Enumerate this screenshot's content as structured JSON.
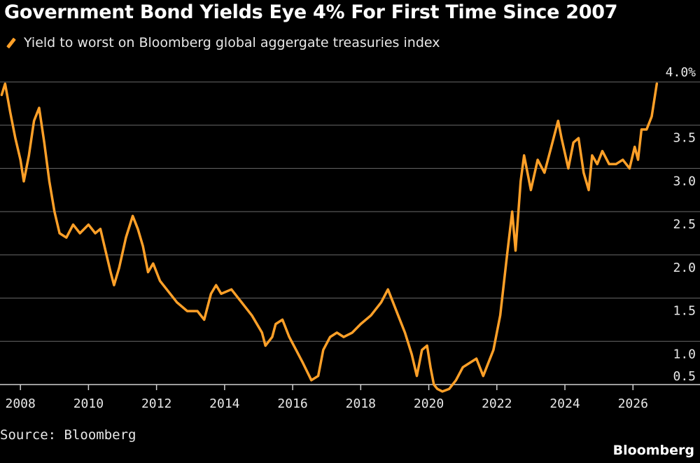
{
  "header": {
    "title": "Government Bond Yields Eye 4% For First Time Since 2007"
  },
  "footer": {
    "source": "Source: Bloomberg",
    "brand": "Bloomberg"
  },
  "chart_data": {
    "type": "line",
    "title": "Government Bond Yields Eye 4% For First Time Since 2007",
    "xlabel": "",
    "ylabel": "",
    "xlim": [
      2007.4,
      2026.9
    ],
    "ylim": [
      0.4,
      4.0
    ],
    "x_ticks": [
      {
        "value": 2008,
        "label": "2008"
      },
      {
        "value": 2010,
        "label": "2010"
      },
      {
        "value": 2012,
        "label": "2012"
      },
      {
        "value": 2014,
        "label": "2014"
      },
      {
        "value": 2016,
        "label": "2016"
      },
      {
        "value": 2018,
        "label": "2018"
      },
      {
        "value": 2020,
        "label": "2020"
      },
      {
        "value": 2022,
        "label": "2022"
      },
      {
        "value": 2024,
        "label": "2024"
      },
      {
        "value": 2026,
        "label": "2026"
      }
    ],
    "y_ticks": [
      {
        "value": 4.0,
        "label": "4.0%"
      },
      {
        "value": 3.5,
        "label": "3.5"
      },
      {
        "value": 3.0,
        "label": "3.0"
      },
      {
        "value": 2.5,
        "label": "2.5"
      },
      {
        "value": 2.0,
        "label": "2.0"
      },
      {
        "value": 1.5,
        "label": "1.5"
      },
      {
        "value": 1.0,
        "label": "1.0"
      },
      {
        "value": 0.5,
        "label": "0.5"
      }
    ],
    "grid": "horizontal",
    "legend": "top-left",
    "series": [
      {
        "name": "Yield to worst on Bloomberg global aggergate treasuries index",
        "color": "#FFA028",
        "x": [
          2007.45,
          2007.55,
          2007.7,
          2007.85,
          2008.0,
          2008.1,
          2008.25,
          2008.4,
          2008.55,
          2008.7,
          2008.85,
          2009.0,
          2009.15,
          2009.35,
          2009.55,
          2009.75,
          2010.0,
          2010.2,
          2010.35,
          2010.5,
          2010.65,
          2010.75,
          2010.9,
          2011.1,
          2011.3,
          2011.45,
          2011.6,
          2011.75,
          2011.9,
          2012.1,
          2012.3,
          2012.6,
          2012.9,
          2013.2,
          2013.4,
          2013.6,
          2013.75,
          2013.9,
          2014.2,
          2014.5,
          2014.8,
          2015.1,
          2015.2,
          2015.4,
          2015.5,
          2015.7,
          2015.9,
          2016.1,
          2016.3,
          2016.55,
          2016.75,
          2016.9,
          2017.1,
          2017.3,
          2017.5,
          2017.75,
          2018.0,
          2018.3,
          2018.6,
          2018.8,
          2018.95,
          2019.1,
          2019.3,
          2019.5,
          2019.65,
          2019.8,
          2019.95,
          2020.05,
          2020.15,
          2020.25,
          2020.4,
          2020.6,
          2020.8,
          2021.0,
          2021.2,
          2021.4,
          2021.6,
          2021.75,
          2021.9,
          2022.1,
          2022.3,
          2022.45,
          2022.55,
          2022.7,
          2022.8,
          2023.0,
          2023.2,
          2023.4,
          2023.6,
          2023.8,
          2023.9,
          2024.1,
          2024.25,
          2024.4,
          2024.55,
          2024.7,
          2024.8,
          2024.95,
          2025.1,
          2025.3,
          2025.5,
          2025.7,
          2025.9,
          2026.05,
          2026.15,
          2026.25,
          2026.4,
          2026.55,
          2026.7
        ],
        "y": [
          3.85,
          3.98,
          3.65,
          3.35,
          3.1,
          2.85,
          3.15,
          3.55,
          3.7,
          3.3,
          2.85,
          2.5,
          2.25,
          2.2,
          2.35,
          2.25,
          2.35,
          2.25,
          2.3,
          2.05,
          1.8,
          1.65,
          1.85,
          2.2,
          2.45,
          2.3,
          2.1,
          1.8,
          1.9,
          1.7,
          1.6,
          1.45,
          1.35,
          1.35,
          1.25,
          1.55,
          1.65,
          1.55,
          1.6,
          1.45,
          1.3,
          1.1,
          0.95,
          1.05,
          1.2,
          1.25,
          1.05,
          0.9,
          0.75,
          0.55,
          0.6,
          0.9,
          1.05,
          1.1,
          1.05,
          1.1,
          1.2,
          1.3,
          1.45,
          1.6,
          1.45,
          1.3,
          1.1,
          0.85,
          0.6,
          0.9,
          0.95,
          0.7,
          0.5,
          0.45,
          0.42,
          0.45,
          0.55,
          0.7,
          0.75,
          0.8,
          0.6,
          0.75,
          0.9,
          1.3,
          2.0,
          2.5,
          2.05,
          2.85,
          3.15,
          2.75,
          3.1,
          2.95,
          3.25,
          3.55,
          3.35,
          3.0,
          3.3,
          3.35,
          2.95,
          2.75,
          3.15,
          3.05,
          3.2,
          3.05,
          3.05,
          3.1,
          3.0,
          3.25,
          3.1,
          3.45,
          3.45,
          3.6,
          3.98
        ]
      }
    ]
  }
}
